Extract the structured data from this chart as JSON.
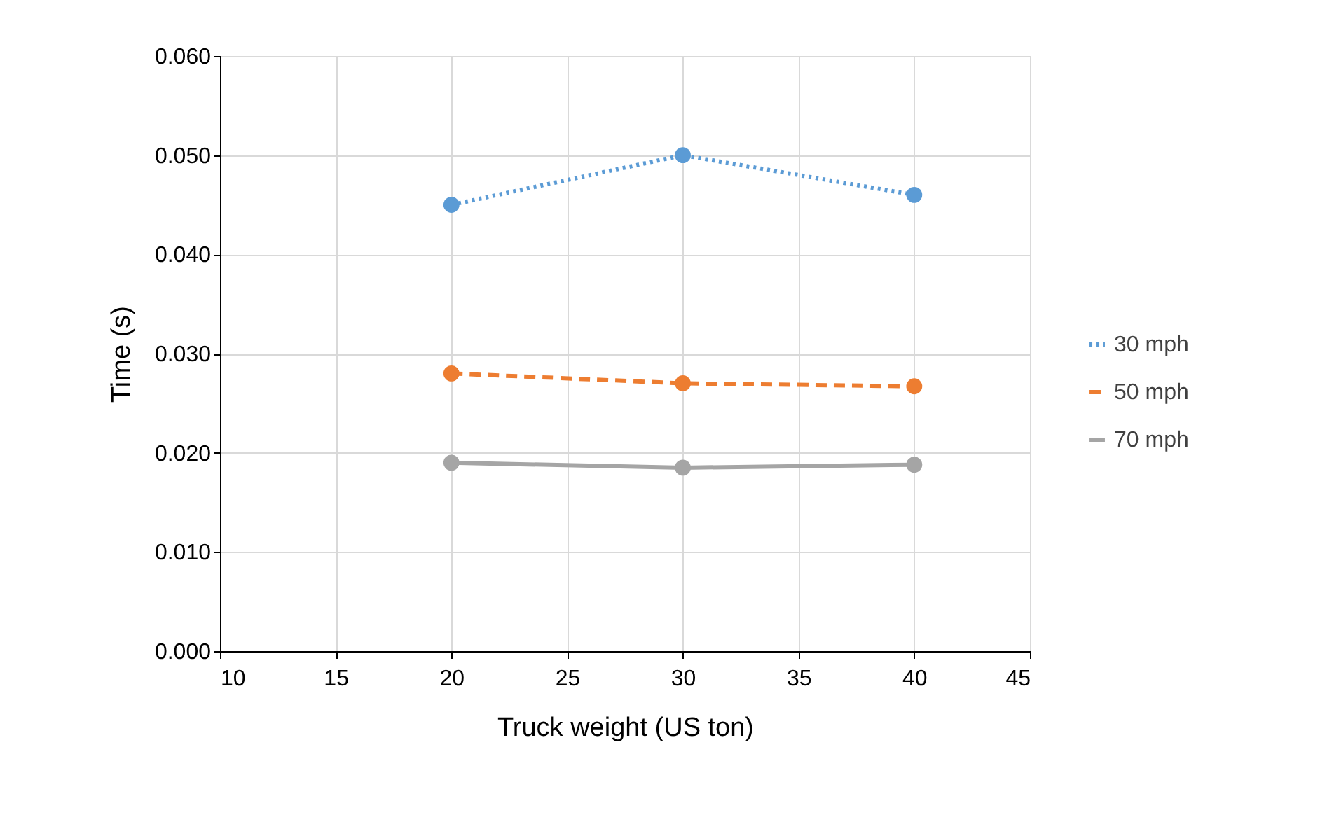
{
  "chart_data": {
    "type": "line",
    "xlabel": "Truck weight (US ton)",
    "ylabel": "Time (s)",
    "x": [
      20,
      30,
      40
    ],
    "series": [
      {
        "name": "30 mph",
        "color": "#5b9bd5",
        "line_style": "dotted",
        "values": [
          0.045,
          0.05,
          0.046
        ]
      },
      {
        "name": "50 mph",
        "color": "#ed7d31",
        "line_style": "dashed",
        "values": [
          0.028,
          0.027,
          0.0267
        ]
      },
      {
        "name": "70 mph",
        "color": "#a5a5a5",
        "line_style": "solid",
        "values": [
          0.019,
          0.0185,
          0.0188
        ]
      }
    ],
    "xlim": [
      10,
      45
    ],
    "xticks": [
      10,
      15,
      20,
      25,
      30,
      35,
      40,
      45
    ],
    "ylim": [
      0,
      0.06
    ],
    "yticks": [
      {
        "value": 0,
        "label": "0.000"
      },
      {
        "value": 0.01,
        "label": "0.010"
      },
      {
        "value": 0.02,
        "label": "0.020"
      },
      {
        "value": 0.03,
        "label": "0.030"
      },
      {
        "value": 0.04,
        "label": "0.040"
      },
      {
        "value": 0.05,
        "label": "0.050"
      },
      {
        "value": 0.06,
        "label": "0.060"
      }
    ],
    "grid": true,
    "legend": "right",
    "marker": "circle"
  }
}
